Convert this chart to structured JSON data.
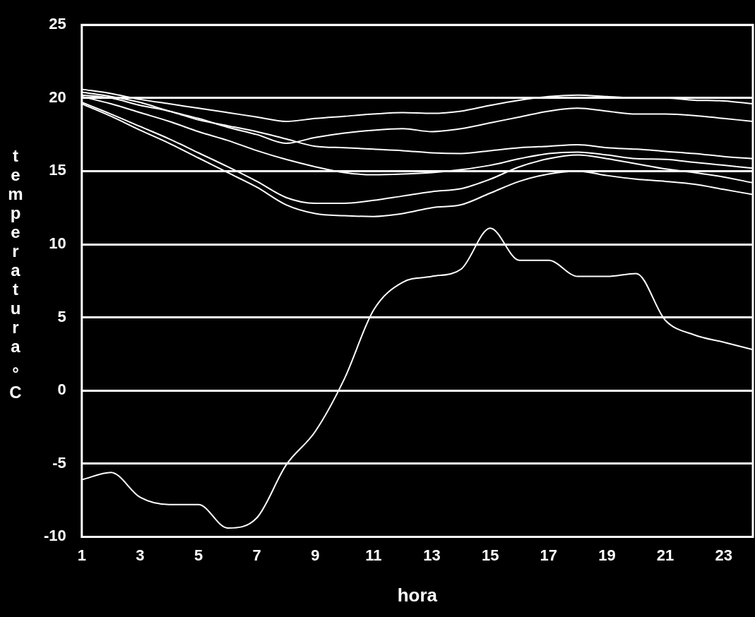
{
  "chart_data": {
    "type": "line",
    "xlabel": "hora",
    "ylabel": "temperatura °C",
    "x": [
      1,
      2,
      3,
      4,
      5,
      6,
      7,
      8,
      9,
      10,
      11,
      12,
      13,
      14,
      15,
      16,
      17,
      18,
      19,
      20,
      21,
      22,
      23,
      24
    ],
    "xlim": [
      1,
      24
    ],
    "xticks": [
      1,
      3,
      5,
      7,
      9,
      11,
      13,
      15,
      17,
      19,
      21,
      23
    ],
    "series": [
      {
        "color": "#ffffff",
        "values": [
          20.6,
          20.3,
          19.9,
          19.6,
          19.3,
          19.0,
          18.7,
          18.4,
          18.6,
          18.75,
          18.9,
          19.0,
          18.95,
          19.1,
          19.5,
          19.85,
          20.1,
          20.2,
          20.1,
          20.0,
          20.0,
          19.85,
          19.8,
          19.6
        ]
      },
      {
        "color": "#ffffff",
        "values": [
          20.4,
          20.1,
          19.7,
          19.1,
          18.6,
          18.0,
          17.5,
          16.9,
          17.3,
          17.6,
          17.8,
          17.9,
          17.7,
          17.9,
          18.3,
          18.7,
          19.1,
          19.3,
          19.1,
          18.9,
          18.9,
          18.8,
          18.6,
          18.4
        ]
      },
      {
        "color": "#ffffff",
        "values": [
          20.2,
          20.0,
          19.5,
          19.1,
          18.5,
          18.1,
          17.7,
          17.2,
          16.7,
          16.6,
          16.5,
          16.4,
          16.25,
          16.2,
          16.4,
          16.6,
          16.7,
          16.8,
          16.6,
          16.5,
          16.35,
          16.2,
          16.0,
          15.85
        ]
      },
      {
        "color": "#ffffff",
        "values": [
          20.1,
          19.6,
          19.0,
          18.4,
          17.7,
          17.1,
          16.4,
          15.8,
          15.3,
          14.9,
          14.75,
          14.8,
          14.9,
          15.1,
          15.4,
          15.85,
          16.2,
          16.3,
          16.1,
          15.85,
          15.8,
          15.6,
          15.4,
          15.2
        ]
      },
      {
        "color": "#ffffff",
        "values": [
          19.7,
          18.9,
          18.05,
          17.2,
          16.25,
          15.3,
          14.3,
          13.2,
          12.8,
          12.8,
          13.0,
          13.3,
          13.6,
          13.8,
          14.45,
          15.3,
          15.85,
          16.1,
          15.85,
          15.5,
          15.15,
          14.9,
          14.6,
          14.2
        ]
      },
      {
        "color": "#ffffff",
        "values": [
          19.6,
          18.75,
          17.8,
          16.9,
          15.9,
          14.9,
          13.9,
          12.7,
          12.1,
          11.95,
          11.9,
          12.1,
          12.5,
          12.7,
          13.5,
          14.3,
          14.8,
          15.0,
          14.7,
          14.45,
          14.3,
          14.1,
          13.75,
          13.4
        ]
      },
      {
        "color": "#ffffff",
        "values": [
          -6.1,
          -5.6,
          -7.3,
          -7.8,
          -7.8,
          -9.4,
          -8.7,
          -5.1,
          -2.8,
          0.8,
          5.5,
          7.4,
          7.8,
          8.3,
          11.1,
          8.9,
          8.9,
          7.8,
          7.8,
          8.0,
          4.8,
          3.8,
          3.3,
          2.8
        ]
      }
    ],
    "ylim": [
      -10,
      25
    ],
    "yticks": [
      -10,
      -5,
      0,
      5,
      10,
      15,
      20,
      25
    ],
    "grid": "y",
    "legend": false
  }
}
